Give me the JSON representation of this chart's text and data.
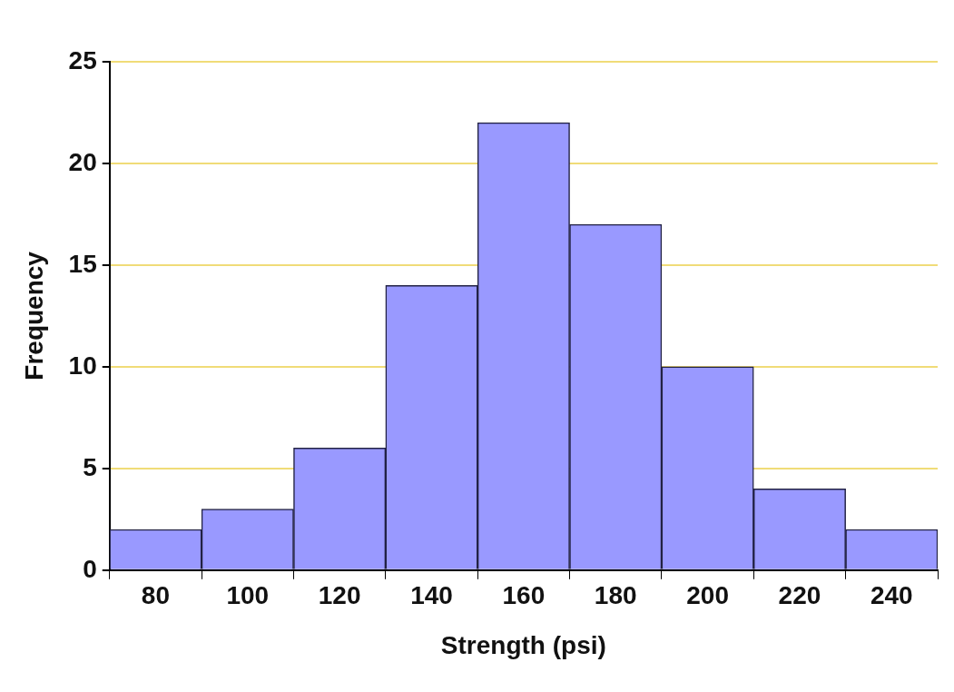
{
  "chart_data": {
    "type": "bar",
    "xlabel": "Strength (psi)",
    "ylabel": "Frequency",
    "categories": [
      "80",
      "100",
      "120",
      "140",
      "160",
      "180",
      "200",
      "220",
      "240"
    ],
    "values": [
      2,
      3,
      6,
      14,
      22,
      17,
      10,
      4,
      2
    ],
    "color": "#9999ff",
    "ylim": [
      0,
      25
    ],
    "yticks": [
      0,
      5,
      10,
      15,
      20,
      25
    ],
    "grid": "y"
  }
}
